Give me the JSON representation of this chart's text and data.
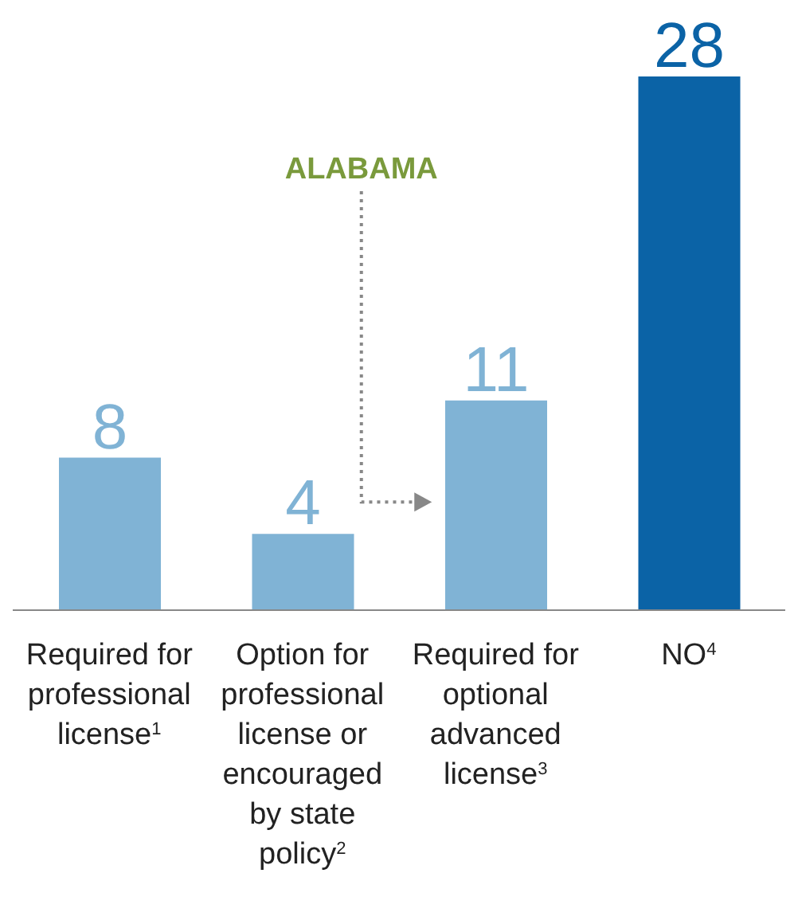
{
  "chart_data": {
    "type": "bar",
    "categories": [
      "Required for professional license$^{1}$",
      "Option for professional license or encouraged by state policy$^{2}$",
      "Required for optional advanced license$^{3}$",
      "NO$^{4}$"
    ],
    "values": [
      8,
      4,
      11,
      28
    ],
    "colors": [
      "#80b3d5",
      "#80b3d5",
      "#80b3d5",
      "#0b63a6"
    ],
    "data_labels": true,
    "tick_labels": "x",
    "annotations": [
      "ALABAMA"
    ]
  }
}
